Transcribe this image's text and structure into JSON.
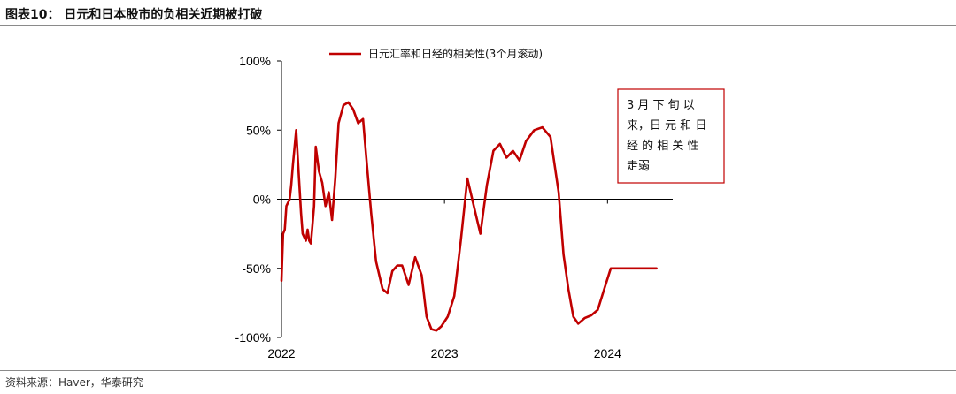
{
  "header": {
    "title": "图表10： 日元和日本股市的负相关近期被打破"
  },
  "footer": {
    "source": "资料来源：Haver，华泰研究"
  },
  "colors": {
    "series": "#c00000",
    "annotation_border": "#c00000",
    "axis": "#000000",
    "rule": "#8a8a8a"
  },
  "chart_data": {
    "type": "line",
    "title": "",
    "xlabel": "",
    "ylabel": "",
    "ylim": [
      -100,
      100
    ],
    "yticks": [
      100,
      50,
      0,
      -50,
      -100
    ],
    "ytick_labels": [
      "100%",
      "50%",
      "0%",
      "-50%",
      "-100%"
    ],
    "xlim": [
      2022.0,
      2024.4
    ],
    "xticks": [
      2022,
      2023,
      2024
    ],
    "xtick_labels": [
      "2022",
      "2023",
      "2024"
    ],
    "grid": false,
    "legend_position": "top",
    "annotation": {
      "lines": [
        "3 月 下 旬 以",
        "来，日 元 和 日",
        "经 的 相 关 性",
        "走弱"
      ]
    },
    "series": [
      {
        "name": "日元汇率和日经的相关性(3个月滚动)",
        "x": [
          2022.0,
          2022.01,
          2022.02,
          2022.03,
          2022.05,
          2022.06,
          2022.07,
          2022.09,
          2022.1,
          2022.12,
          2022.13,
          2022.15,
          2022.16,
          2022.17,
          2022.18,
          2022.2,
          2022.21,
          2022.23,
          2022.25,
          2022.27,
          2022.29,
          2022.31,
          2022.33,
          2022.35,
          2022.38,
          2022.41,
          2022.44,
          2022.47,
          2022.5,
          2022.52,
          2022.55,
          2022.58,
          2022.62,
          2022.65,
          2022.68,
          2022.71,
          2022.74,
          2022.78,
          2022.82,
          2022.86,
          2022.89,
          2022.92,
          2022.95,
          2022.98,
          2023.02,
          2023.06,
          2023.1,
          2023.14,
          2023.18,
          2023.22,
          2023.26,
          2023.3,
          2023.34,
          2023.38,
          2023.42,
          2023.46,
          2023.5,
          2023.55,
          2023.6,
          2023.65,
          2023.7,
          2023.73,
          2023.76,
          2023.79,
          2023.82,
          2023.86,
          2023.9,
          2023.94,
          2023.98,
          2024.02,
          2024.06,
          2024.1,
          2024.14,
          2024.18,
          2024.22,
          2024.26,
          2024.3
        ],
        "values": [
          -59,
          -25,
          -22,
          -5,
          0,
          10,
          25,
          50,
          30,
          -10,
          -25,
          -30,
          -22,
          -30,
          -32,
          -5,
          38,
          20,
          12,
          -5,
          5,
          -15,
          15,
          55,
          68,
          70,
          65,
          55,
          58,
          30,
          -10,
          -45,
          -65,
          -68,
          -52,
          -48,
          -48,
          -62,
          -42,
          -55,
          -85,
          -94,
          -95,
          -92,
          -85,
          -70,
          -30,
          15,
          -5,
          -25,
          10,
          35,
          40,
          30,
          35,
          28,
          42,
          50,
          52,
          45,
          5,
          -40,
          -65,
          -85,
          -90,
          -86,
          -84,
          -80,
          -65,
          -50,
          -50,
          -50,
          -50,
          -50,
          -50,
          -50,
          -50
        ]
      }
    ]
  }
}
